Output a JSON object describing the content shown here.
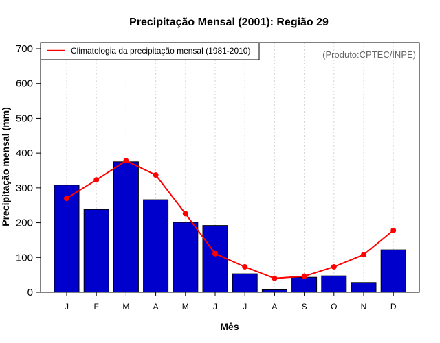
{
  "colors": {
    "bar": "#0000CC",
    "bar_border": "#000000",
    "line": "#FF0000",
    "grid": "#D3D3D3",
    "credit": "#666666"
  },
  "chart_data": {
    "type": "bar",
    "title": "Precipitação Mensal (2001): Região 29",
    "xlabel": "Mês",
    "ylabel": "Precipitação mensal (mm)",
    "ylim": [
      0,
      700
    ],
    "yticks": [
      0,
      100,
      200,
      300,
      400,
      500,
      600,
      700
    ],
    "grid": "vertical-dotted",
    "categories": [
      "J",
      "F",
      "M",
      "A",
      "M",
      "J",
      "J",
      "A",
      "S",
      "O",
      "N",
      "D"
    ],
    "series": [
      {
        "name": "Precipitação mensal (2001)",
        "type": "bar",
        "values": [
          308,
          238,
          375,
          266,
          201,
          192,
          53,
          7,
          43,
          47,
          28,
          122
        ]
      },
      {
        "name": "Climatologia da precipitação mensal (1981-2010)",
        "type": "line",
        "values": [
          270,
          323,
          378,
          337,
          226,
          111,
          73,
          40,
          46,
          73,
          108,
          178
        ]
      }
    ],
    "legend": {
      "position": "top-left",
      "entries": [
        "Climatologia da precipitação mensal (1981-2010)"
      ]
    },
    "annotation": "(Produto:CPTEC/INPE)"
  }
}
